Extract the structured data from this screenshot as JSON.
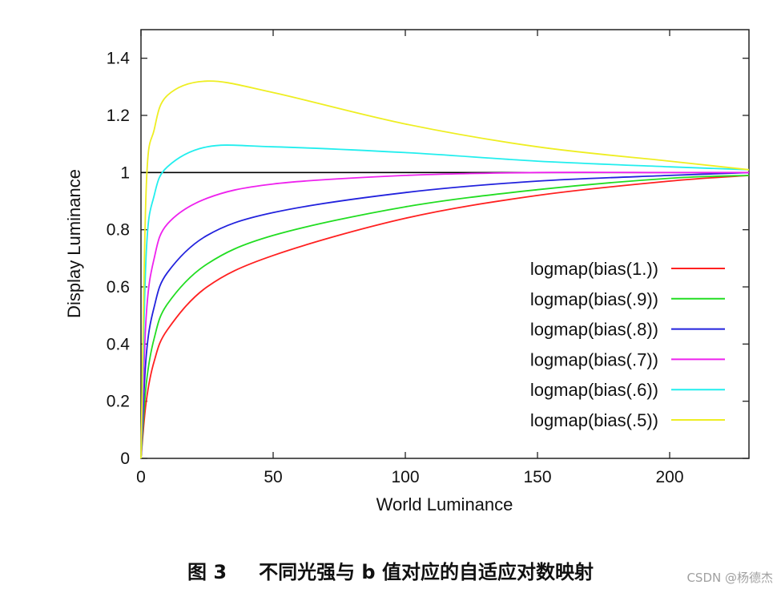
{
  "chart_data": {
    "type": "line",
    "xlabel": "World Luminance",
    "ylabel": "Display Luminance",
    "xlim": [
      0,
      230
    ],
    "ylim": [
      0,
      1.5
    ],
    "xticks": [
      0,
      50,
      100,
      150,
      200
    ],
    "yticks": [
      0,
      0.2,
      0.4,
      0.6,
      0.8,
      1,
      1.2,
      1.4
    ],
    "ytick_labels": [
      "0",
      "0.2",
      "0.4",
      "0.6",
      "0.8",
      "1",
      "1.2",
      "1.4"
    ],
    "grid": false,
    "legend_position": "right",
    "reference_line": {
      "y": 1,
      "color": "#000000"
    },
    "series": [
      {
        "name": "logmap(bias(1.))",
        "bias": 1.0,
        "color": "#ff2020",
        "x": [
          0,
          2,
          5,
          10,
          25,
          50,
          100,
          150,
          200,
          230
        ],
        "values": [
          0,
          0.2,
          0.34,
          0.45,
          0.6,
          0.71,
          0.84,
          0.92,
          0.97,
          0.99
        ]
      },
      {
        "name": "logmap(bias(.9))",
        "bias": 0.9,
        "color": "#22dd22",
        "x": [
          0,
          2,
          5,
          10,
          25,
          50,
          100,
          150,
          200,
          230
        ],
        "values": [
          0,
          0.26,
          0.42,
          0.54,
          0.68,
          0.78,
          0.88,
          0.94,
          0.98,
          0.99
        ]
      },
      {
        "name": "logmap(bias(.8))",
        "bias": 0.8,
        "color": "#2222dd",
        "x": [
          0,
          2,
          5,
          10,
          25,
          50,
          100,
          150,
          200,
          230
        ],
        "values": [
          0,
          0.36,
          0.53,
          0.65,
          0.78,
          0.86,
          0.93,
          0.97,
          0.99,
          1.0
        ]
      },
      {
        "name": "logmap(bias(.7))",
        "bias": 0.7,
        "color": "#ee22ee",
        "x": [
          0,
          2,
          5,
          10,
          25,
          50,
          100,
          150,
          200,
          230
        ],
        "values": [
          0,
          0.5,
          0.7,
          0.82,
          0.91,
          0.96,
          0.99,
          1.0,
          1.0,
          1.0
        ]
      },
      {
        "name": "logmap(bias(.6))",
        "bias": 0.6,
        "color": "#22eeee",
        "x": [
          0,
          2,
          5,
          10,
          25,
          50,
          100,
          150,
          200,
          230
        ],
        "values": [
          0,
          0.72,
          0.92,
          1.02,
          1.09,
          1.09,
          1.07,
          1.04,
          1.02,
          1.01
        ]
      },
      {
        "name": "logmap(bias(.5))",
        "bias": 0.5,
        "color": "#eeee22",
        "x": [
          0,
          2,
          5,
          10,
          25,
          50,
          100,
          150,
          200,
          230
        ],
        "values": [
          0,
          0.95,
          1.15,
          1.27,
          1.32,
          1.28,
          1.17,
          1.09,
          1.04,
          1.01
        ]
      }
    ]
  },
  "caption": {
    "figure_number": "图 3",
    "text": "不同光强与 b 值对应的自适应对数映射"
  },
  "watermark": "CSDN @杨德杰"
}
